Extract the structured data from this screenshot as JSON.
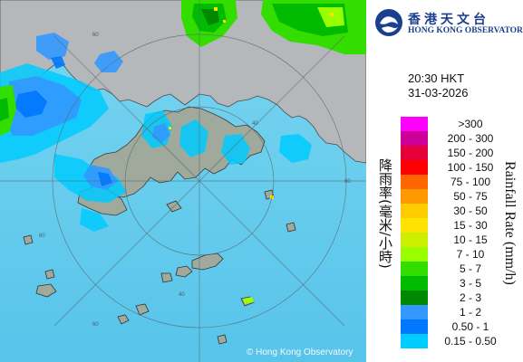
{
  "header": {
    "logo_cn": "香港天文台",
    "logo_en": "HONG KONG OBSERVATORY"
  },
  "timestamp": {
    "time": "20:30 HKT",
    "date": "31-03-2026"
  },
  "legend": {
    "title_cn": "降雨率(毫米/小時)",
    "title_en": "Rainfall Rate (mm/h)",
    "items": [
      {
        "label": ">300",
        "color": "#ff00ff"
      },
      {
        "label": "200 - 300",
        "color": "#cc0099"
      },
      {
        "label": "150 - 200",
        "color": "#e6003a"
      },
      {
        "label": "100 - 150",
        "color": "#ff0000"
      },
      {
        "label": "75 - 100",
        "color": "#ff6600"
      },
      {
        "label": "50 - 75",
        "color": "#ff9900"
      },
      {
        "label": "30 - 50",
        "color": "#ffcc00"
      },
      {
        "label": "15 - 30",
        "color": "#ffe300"
      },
      {
        "label": "10 - 15",
        "color": "#ccee00"
      },
      {
        "label": "7 - 10",
        "color": "#99ff00"
      },
      {
        "label": "5 - 7",
        "color": "#33dd00"
      },
      {
        "label": "3 - 5",
        "color": "#00bb00"
      },
      {
        "label": "2 - 3",
        "color": "#008800"
      },
      {
        "label": "1 - 2",
        "color": "#3399ff"
      },
      {
        "label": "0.50 - 1",
        "color": "#0077ff"
      },
      {
        "label": "0.15 - 0.50",
        "color": "#00ccff"
      }
    ]
  },
  "map": {
    "copyright": "© Hong Kong Observatory",
    "range_rings": [
      "60",
      "60",
      "60",
      "60",
      "40",
      "40"
    ]
  }
}
